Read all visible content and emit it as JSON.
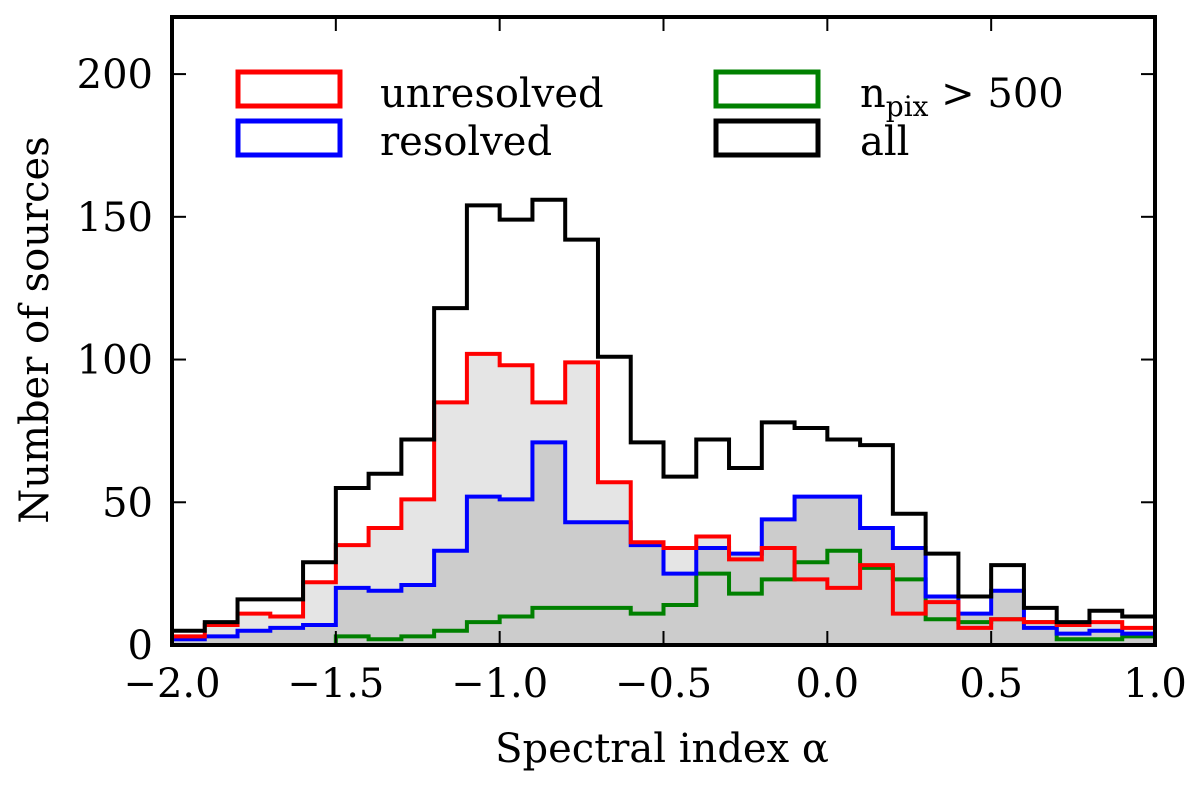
{
  "chart_data": {
    "type": "histogram",
    "title": "",
    "xlabel": "Spectral index α",
    "ylabel": "Number of sources",
    "xlim": [
      -2.0,
      1.0
    ],
    "ylim": [
      0,
      220
    ],
    "bin_width": 0.1,
    "bin_edges": [
      -2.0,
      -1.9,
      -1.8,
      -1.7,
      -1.6,
      -1.5,
      -1.4,
      -1.3,
      -1.2,
      -1.1,
      -1.0,
      -0.9,
      -0.8,
      -0.7,
      -0.6,
      -0.5,
      -0.4,
      -0.3,
      -0.2,
      -0.1,
      0.0,
      0.1,
      0.2,
      0.3,
      0.4,
      0.5,
      0.6,
      0.7,
      0.8,
      0.9,
      1.0
    ],
    "xticks": [
      -2.0,
      -1.5,
      -1.0,
      -0.5,
      0.0,
      0.5,
      1.0
    ],
    "xtick_labels": [
      "−2.0",
      "−1.5",
      "−1.0",
      "−0.5",
      "0.0",
      "0.5",
      "1.0"
    ],
    "yticks": [
      0,
      50,
      100,
      150,
      200
    ],
    "ytick_labels": [
      "0",
      "50",
      "100",
      "150",
      "200"
    ],
    "legend_position": "top",
    "series": [
      {
        "id": "unresolved",
        "name": "unresolved",
        "color": "#ff0000",
        "fill": "#e5e5e5",
        "values": [
          3,
          7,
          11,
          10,
          22,
          35,
          41,
          51,
          85,
          102,
          98,
          85,
          99,
          57,
          36,
          34,
          38,
          30,
          34,
          23,
          20,
          28,
          11,
          15,
          6,
          9,
          8,
          7,
          8,
          6
        ]
      },
      {
        "id": "resolved",
        "name": "resolved",
        "color": "#0000ff",
        "fill": "#cccccc",
        "values": [
          2,
          3,
          5,
          6,
          7,
          20,
          19,
          21,
          33,
          52,
          51,
          71,
          43,
          43,
          35,
          25,
          34,
          32,
          44,
          52,
          52,
          41,
          34,
          17,
          11,
          19,
          6,
          4,
          5,
          4
        ]
      },
      {
        "id": "npix",
        "name": "n",
        "name_sub": "pix",
        "name_suffix": " > 500",
        "color": "#008000",
        "fill": "none",
        "values": [
          0,
          0,
          0,
          0,
          0,
          3,
          2,
          3,
          5,
          8,
          10,
          13,
          13,
          13,
          11,
          14,
          25,
          18,
          23,
          29,
          33,
          27,
          23,
          9,
          8,
          9,
          8,
          2,
          2,
          3
        ]
      },
      {
        "id": "all",
        "name": "all",
        "color": "#000000",
        "fill": "none",
        "values": [
          5,
          8,
          16,
          16,
          29,
          55,
          60,
          72,
          118,
          154,
          149,
          156,
          142,
          101,
          71,
          59,
          72,
          62,
          78,
          76,
          72,
          70,
          46,
          32,
          17,
          28,
          13,
          8,
          12,
          10
        ]
      }
    ],
    "legend_order": [
      "unresolved",
      "resolved",
      "npix",
      "all"
    ]
  }
}
